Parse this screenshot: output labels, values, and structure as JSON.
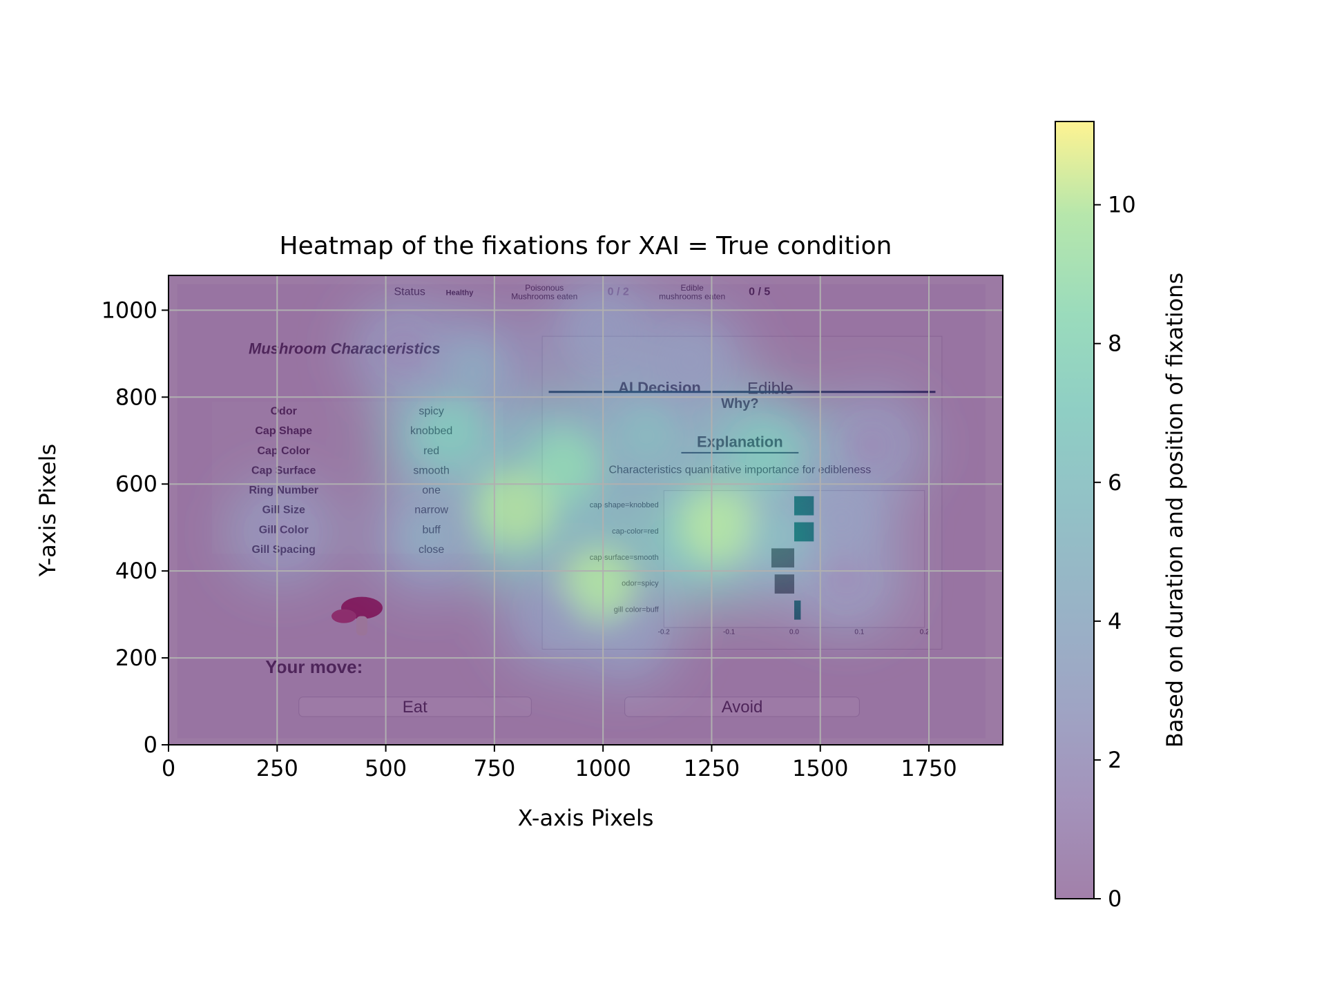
{
  "chart_data": {
    "type": "heatmap",
    "title": "Heatmap of the fixations for XAI = True condition",
    "xlabel": "X-axis Pixels",
    "ylabel": "Y-axis Pixels",
    "xlim": [
      0,
      1920
    ],
    "ylim": [
      0,
      1080
    ],
    "xticks": [
      0,
      250,
      500,
      750,
      1000,
      1250,
      1500,
      1750
    ],
    "yticks": [
      0,
      200,
      400,
      600,
      800,
      1000
    ],
    "grid": true,
    "colorbar": {
      "label": "Based on duration and position of fixations",
      "range": [
        0,
        11.2
      ],
      "ticks": [
        0,
        2,
        4,
        6,
        8,
        10
      ],
      "colormap": "viridis",
      "alpha": 0.5
    },
    "hotspots": [
      {
        "x": 800,
        "y": 545,
        "value": 11
      },
      {
        "x": 1265,
        "y": 505,
        "value": 11
      },
      {
        "x": 990,
        "y": 370,
        "value": 10
      },
      {
        "x": 910,
        "y": 640,
        "value": 9
      },
      {
        "x": 650,
        "y": 720,
        "value": 8
      },
      {
        "x": 1100,
        "y": 710,
        "value": 7
      },
      {
        "x": 1370,
        "y": 660,
        "value": 8
      },
      {
        "x": 1400,
        "y": 480,
        "value": 7
      },
      {
        "x": 700,
        "y": 860,
        "value": 5
      },
      {
        "x": 1000,
        "y": 950,
        "value": 4
      },
      {
        "x": 1200,
        "y": 880,
        "value": 4
      },
      {
        "x": 1550,
        "y": 520,
        "value": 3
      },
      {
        "x": 1560,
        "y": 380,
        "value": 2
      },
      {
        "x": 600,
        "y": 480,
        "value": 5
      },
      {
        "x": 1050,
        "y": 260,
        "value": 3
      },
      {
        "x": 900,
        "y": 300,
        "value": 4
      },
      {
        "x": 260,
        "y": 490,
        "value": 2
      },
      {
        "x": 1620,
        "y": 690,
        "value": 2
      },
      {
        "x": 540,
        "y": 910,
        "value": 2
      }
    ]
  },
  "background_ui": {
    "status_label": "Status",
    "status_value": "Healthy",
    "poisonous_label": "Poisonous",
    "poisonous_label2": "Mushrooms eaten",
    "poisonous_count": "0 / 2",
    "edible_label": "Edible",
    "edible_label2": "mushrooms eaten",
    "edible_count": "0 / 5",
    "characteristics_title": "Mushroom Characteristics",
    "characteristics": [
      {
        "name": "Odor",
        "value": "spicy"
      },
      {
        "name": "Cap Shape",
        "value": "knobbed"
      },
      {
        "name": "Cap Color",
        "value": "red"
      },
      {
        "name": "Cap Surface",
        "value": "smooth"
      },
      {
        "name": "Ring Number",
        "value": "one"
      },
      {
        "name": "Gill Size",
        "value": "narrow"
      },
      {
        "name": "Gill Color",
        "value": "buff"
      },
      {
        "name": "Gill Spacing",
        "value": "close"
      }
    ],
    "ai_decision_label": "AI Decision",
    "ai_decision_value": "Edible",
    "why_label": "Why?",
    "explanation_title": "Explanation",
    "explanation_subtitle": "Characteristics quantitative importance for edibleness",
    "explanation_features": [
      {
        "name": "cap-shape=knobbed",
        "value": 0.03
      },
      {
        "name": "cap-color=red",
        "value": 0.03
      },
      {
        "name": "cap-surface=smooth",
        "value": -0.035
      },
      {
        "name": "odor=spicy",
        "value": -0.03
      },
      {
        "name": "gill color=buff",
        "value": 0.01
      }
    ],
    "explanation_ticks": [
      "-0.2",
      "-0.1",
      "0.0",
      "0.1",
      "0.2"
    ],
    "your_move_label": "Your move:",
    "eat_button": "Eat",
    "avoid_button": "Avoid"
  }
}
